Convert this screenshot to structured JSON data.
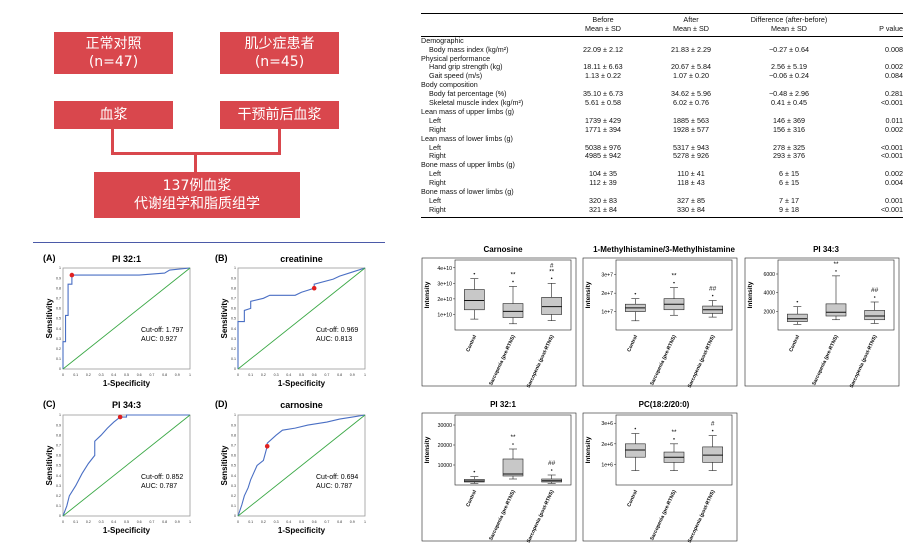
{
  "flowchart": {
    "box1": {
      "line1": "正常对照",
      "line2": "(n=47)"
    },
    "box2": {
      "line1": "肌少症患者",
      "line2": "(n=45)"
    },
    "box3": "血浆",
    "box4": "干预前后血浆",
    "box5": {
      "line1": "137例血浆",
      "line2": "代谢组学和脂质组学"
    }
  },
  "table": {
    "headers": [
      {
        "l1": "",
        "l2": ""
      },
      {
        "l1": "Before",
        "l2": "Mean ± SD"
      },
      {
        "l1": "After",
        "l2": "Mean ± SD"
      },
      {
        "l1": "Difference (after-before)",
        "l2": "Mean ± SD"
      },
      {
        "l1": "",
        "l2": "P value"
      }
    ],
    "rows": [
      {
        "label": "Demographic",
        "sub": false,
        "before": "",
        "after": "",
        "diff": "",
        "p": ""
      },
      {
        "label": "Body mass index (kg/m²)",
        "sub": true,
        "before": "22.09 ± 2.12",
        "after": "21.83 ± 2.29",
        "diff": "−0.27 ± 0.64",
        "p": "0.008"
      },
      {
        "label": "Physical performance",
        "sub": false,
        "before": "",
        "after": "",
        "diff": "",
        "p": ""
      },
      {
        "label": "Hand grip strength (kg)",
        "sub": true,
        "before": "18.11 ± 6.63",
        "after": "20.67 ± 5.84",
        "diff": "2.56 ± 5.19",
        "p": "0.002"
      },
      {
        "label": "Gait speed (m/s)",
        "sub": true,
        "before": "1.13 ± 0.22",
        "after": "1.07 ± 0.20",
        "diff": "−0.06 ± 0.24",
        "p": "0.084"
      },
      {
        "label": "Body composition",
        "sub": false,
        "before": "",
        "after": "",
        "diff": "",
        "p": ""
      },
      {
        "label": "Body fat percentage (%)",
        "sub": true,
        "before": "35.10 ± 6.73",
        "after": "34.62 ± 5.96",
        "diff": "−0.48 ± 2.96",
        "p": "0.281"
      },
      {
        "label": "Skeletal muscle index (kg/m²)",
        "sub": true,
        "before": "5.61 ± 0.58",
        "after": "6.02 ± 0.76",
        "diff": "0.41 ± 0.45",
        "p": "<0.001"
      },
      {
        "label": "Lean mass of upper limbs (g)",
        "sub": false,
        "before": "",
        "after": "",
        "diff": "",
        "p": ""
      },
      {
        "label": "Left",
        "sub": true,
        "before": "1739 ± 429",
        "after": "1885 ± 563",
        "diff": "146 ± 369",
        "p": "0.011"
      },
      {
        "label": "Right",
        "sub": true,
        "before": "1771 ± 394",
        "after": "1928 ± 577",
        "diff": "156 ± 316",
        "p": "0.002"
      },
      {
        "label": "Lean mass of lower limbs (g)",
        "sub": false,
        "before": "",
        "after": "",
        "diff": "",
        "p": ""
      },
      {
        "label": "Left",
        "sub": true,
        "before": "5038 ± 976",
        "after": "5317 ± 943",
        "diff": "278 ± 325",
        "p": "<0.001"
      },
      {
        "label": "Right",
        "sub": true,
        "before": "4985 ± 942",
        "after": "5278 ± 926",
        "diff": "293 ± 376",
        "p": "<0.001"
      },
      {
        "label": "Bone mass of upper limbs (g)",
        "sub": false,
        "before": "",
        "after": "",
        "diff": "",
        "p": ""
      },
      {
        "label": "Left",
        "sub": true,
        "before": "104 ± 35",
        "after": "110 ± 41",
        "diff": "6 ± 15",
        "p": "0.002"
      },
      {
        "label": "Right",
        "sub": true,
        "before": "112 ± 39",
        "after": "118 ± 43",
        "diff": "6 ± 15",
        "p": "0.004"
      },
      {
        "label": "Bone mass of lower limbs (g)",
        "sub": false,
        "before": "",
        "after": "",
        "diff": "",
        "p": ""
      },
      {
        "label": "Left",
        "sub": true,
        "before": "320 ± 83",
        "after": "327 ± 85",
        "diff": "7 ± 17",
        "p": "0.001"
      },
      {
        "label": "Right",
        "sub": true,
        "before": "321 ± 84",
        "after": "330 ± 84",
        "diff": "9 ± 18",
        "p": "<0.001"
      }
    ]
  },
  "chart_data": [
    {
      "type": "line",
      "panel": "(A)",
      "title": "PI 32:1",
      "xlabel": "1-Specificity",
      "ylabel": "Sensitivity",
      "xlim": [
        0,
        1
      ],
      "ylim": [
        0,
        1
      ],
      "ticks": [
        "0",
        "0.1",
        "0.2",
        "0.3",
        "0.4",
        "0.5",
        "0.6",
        "0.7",
        "0.8",
        "0.9",
        "1"
      ],
      "annotation": [
        "Cut-off: 1.797",
        "AUC: 0.927"
      ],
      "cutoff_point": [
        0.07,
        0.93
      ],
      "series": [
        {
          "color": "#4a6fc4",
          "x": [
            0,
            0,
            0.02,
            0.02,
            0.04,
            0.04,
            0.07,
            0.07,
            0.6,
            0.8,
            0.84,
            1
          ],
          "y": [
            0,
            0.27,
            0.27,
            0.53,
            0.53,
            0.84,
            0.84,
            0.93,
            0.93,
            0.95,
            0.98,
            1
          ]
        },
        {
          "color": "#3aa845",
          "x": [
            0,
            1
          ],
          "y": [
            0,
            1
          ]
        }
      ]
    },
    {
      "type": "line",
      "panel": "(B)",
      "title": "creatinine",
      "xlabel": "1-Specificity",
      "ylabel": "Sensitivity",
      "xlim": [
        0,
        1
      ],
      "ylim": [
        0,
        1
      ],
      "ticks": [
        "0",
        "0.1",
        "0.2",
        "0.3",
        "0.4",
        "0.5",
        "0.6",
        "0.7",
        "0.8",
        "0.9",
        "1"
      ],
      "annotation": [
        "Cut-off: 0.969",
        "AUC: 0.813"
      ],
      "cutoff_point": [
        0.6,
        0.8
      ],
      "series": [
        {
          "color": "#4a6fc4",
          "x": [
            0,
            0,
            0.05,
            0.05,
            0.1,
            0.1,
            0.2,
            0.25,
            0.35,
            0.45,
            0.5,
            0.55,
            0.6,
            0.6,
            0.75,
            0.8,
            0.9,
            1
          ],
          "y": [
            0,
            0.47,
            0.47,
            0.58,
            0.6,
            0.67,
            0.7,
            0.73,
            0.73,
            0.73,
            0.76,
            0.78,
            0.8,
            0.84,
            0.89,
            0.92,
            0.96,
            1
          ]
        },
        {
          "color": "#3aa845",
          "x": [
            0,
            1
          ],
          "y": [
            0,
            1
          ]
        }
      ]
    },
    {
      "type": "line",
      "panel": "(C)",
      "title": "PI 34:3",
      "xlabel": "1-Specificity",
      "ylabel": "Sensitivity",
      "xlim": [
        0,
        1
      ],
      "ylim": [
        0,
        1
      ],
      "ticks": [
        "0",
        "0.1",
        "0.2",
        "0.3",
        "0.4",
        "0.5",
        "0.6",
        "0.7",
        "0.8",
        "0.9",
        "1"
      ],
      "annotation": [
        "Cut-off: 0.852",
        "AUC: 0.787"
      ],
      "cutoff_point": [
        0.45,
        0.98
      ],
      "series": [
        {
          "color": "#4a6fc4",
          "x": [
            0,
            0.03,
            0.05,
            0.1,
            0.15,
            0.2,
            0.25,
            0.25,
            0.3,
            0.35,
            0.4,
            0.45,
            0.5,
            0.5,
            1
          ],
          "y": [
            0,
            0.1,
            0.2,
            0.3,
            0.42,
            0.52,
            0.6,
            0.74,
            0.8,
            0.87,
            0.93,
            0.98,
            0.98,
            1,
            1
          ]
        },
        {
          "color": "#3aa845",
          "x": [
            0,
            1
          ],
          "y": [
            0,
            1
          ]
        }
      ]
    },
    {
      "type": "line",
      "panel": "(D)",
      "title": "carnosine",
      "xlabel": "1-Specificity",
      "ylabel": "Sensitivity",
      "xlim": [
        0,
        1
      ],
      "ylim": [
        0,
        1
      ],
      "ticks": [
        "0",
        "0.1",
        "0.2",
        "0.3",
        "0.4",
        "0.5",
        "0.6",
        "0.7",
        "0.8",
        "0.9",
        "1"
      ],
      "annotation": [
        "Cut-off: 0.694",
        "AUC: 0.787"
      ],
      "cutoff_point": [
        0.23,
        0.69
      ],
      "series": [
        {
          "color": "#4a6fc4",
          "x": [
            0,
            0.03,
            0.05,
            0.08,
            0.1,
            0.15,
            0.2,
            0.23,
            0.23,
            0.3,
            0.35,
            0.45,
            0.55,
            0.7,
            0.8,
            0.9,
            1
          ],
          "y": [
            0,
            0.11,
            0.2,
            0.28,
            0.36,
            0.5,
            0.55,
            0.69,
            0.72,
            0.8,
            0.85,
            0.87,
            0.9,
            0.93,
            0.96,
            0.98,
            1
          ]
        },
        {
          "color": "#3aa845",
          "x": [
            0,
            1
          ],
          "y": [
            0,
            1
          ]
        }
      ]
    },
    {
      "type": "box",
      "title": "Carnosine",
      "ylabel": "Intensity",
      "yticks": [
        "1e+10",
        "2e+10",
        "3e+10",
        "4e+10"
      ],
      "ylim": [
        0,
        45000000000.0
      ],
      "categories": [
        "Control",
        "Sarcopenia (pre-RTNS)",
        "Sarcopenia (post-RTNS)"
      ],
      "annotations": [
        "",
        "**",
        "#\n**"
      ],
      "boxes": [
        {
          "min": 7000000000.0,
          "q1": 13000000000.0,
          "median": 19000000000.0,
          "q3": 26000000000.0,
          "max": 33000000000.0
        },
        {
          "min": 4000000000.0,
          "q1": 8000000000.0,
          "median": 12000000000.0,
          "q3": 17000000000.0,
          "max": 28000000000.0
        },
        {
          "min": 6000000000.0,
          "q1": 10000000000.0,
          "median": 15000000000.0,
          "q3": 21000000000.0,
          "max": 30000000000.0
        }
      ]
    },
    {
      "type": "box",
      "title": "1-Methylhistamine/3-Methylhistamine",
      "ylabel": "Intensity",
      "yticks": [
        "1e+7",
        "2e+7",
        "3e+7"
      ],
      "ylim": [
        0,
        38000000.0
      ],
      "categories": [
        "Control",
        "Sarcopenia (pre-RTNS)",
        "Sarcopenia (post-RTNS)"
      ],
      "annotations": [
        "",
        "**",
        "##"
      ],
      "boxes": [
        {
          "min": 5000000.0,
          "q1": 10000000.0,
          "median": 12000000.0,
          "q3": 14000000.0,
          "max": 17000000.0
        },
        {
          "min": 8000000.0,
          "q1": 11000000.0,
          "median": 14000000.0,
          "q3": 17000000.0,
          "max": 23000000.0
        },
        {
          "min": 7000000.0,
          "q1": 9000000.0,
          "median": 11000000.0,
          "q3": 13000000.0,
          "max": 16000000.0
        }
      ]
    },
    {
      "type": "box",
      "title": "PI 34:3",
      "ylabel": "Intensity",
      "yticks": [
        "2000",
        "4000",
        "6000"
      ],
      "ylim": [
        0,
        7500
      ],
      "categories": [
        "Control",
        "Sarcopenia (pre-RTNS)",
        "Sarcopenia (post-RTNS)"
      ],
      "annotations": [
        "",
        "**",
        "##"
      ],
      "boxes": [
        {
          "min": 600,
          "q1": 900,
          "median": 1200,
          "q3": 1700,
          "max": 2500
        },
        {
          "min": 1100,
          "q1": 1500,
          "median": 1900,
          "q3": 2800,
          "max": 5800
        },
        {
          "min": 700,
          "q1": 1100,
          "median": 1500,
          "q3": 2100,
          "max": 3000
        }
      ]
    },
    {
      "type": "box",
      "title": "PI 32:1",
      "ylabel": "Intensity",
      "yticks": [
        "10000",
        "20000",
        "30000"
      ],
      "ylim": [
        0,
        35000
      ],
      "categories": [
        "Control",
        "Sarcopenia (pre-RTNS)",
        "Sarcopenia (post-RTNS)"
      ],
      "annotations": [
        "",
        "**",
        "##"
      ],
      "boxes": [
        {
          "min": 800,
          "q1": 1500,
          "median": 2000,
          "q3": 2800,
          "max": 4200
        },
        {
          "min": 3000,
          "q1": 4500,
          "median": 5500,
          "q3": 13000,
          "max": 18000
        },
        {
          "min": 800,
          "q1": 1500,
          "median": 2100,
          "q3": 3000,
          "max": 5000
        }
      ]
    },
    {
      "type": "box",
      "title": "PC(18:2/20:0)",
      "ylabel": "Intensity",
      "yticks": [
        "1e+6",
        "2e+6",
        "3e+6"
      ],
      "ylim": [
        0,
        3400000.0
      ],
      "categories": [
        "Control",
        "Sarcopenia (pre-RTNS)",
        "Sarcopenia (post-RTNS)"
      ],
      "annotations": [
        "",
        "**",
        "#"
      ],
      "boxes": [
        {
          "min": 700000.0,
          "q1": 1350000.0,
          "median": 1700000.0,
          "q3": 2000000.0,
          "max": 2500000.0
        },
        {
          "min": 700000.0,
          "q1": 1100000.0,
          "median": 1350000.0,
          "q3": 1600000.0,
          "max": 2000000.0
        },
        {
          "min": 700000.0,
          "q1": 1100000.0,
          "median": 1450000.0,
          "q3": 1850000.0,
          "max": 2400000.0
        }
      ]
    }
  ]
}
